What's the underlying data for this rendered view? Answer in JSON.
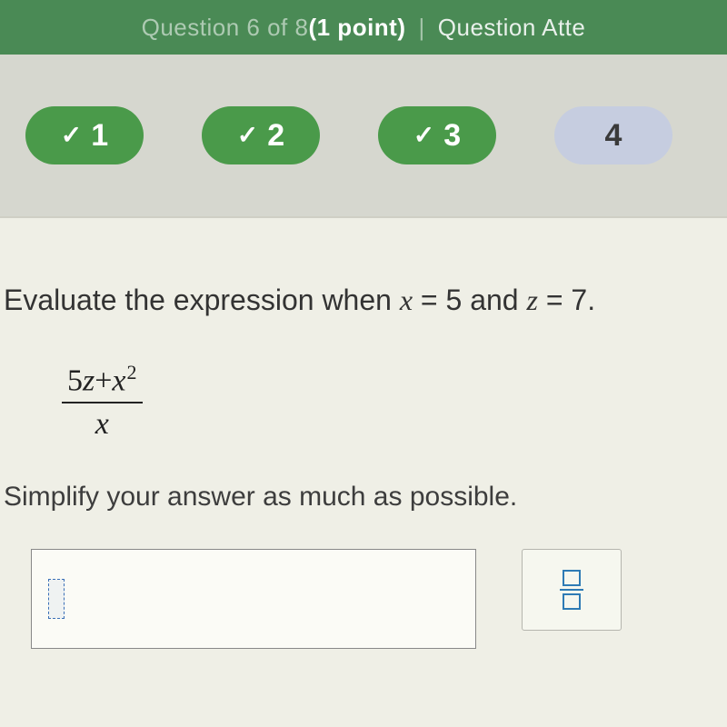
{
  "header": {
    "left_faded": "Question 6 of 8 ",
    "point_bold": "(1 point)",
    "divider": "|",
    "right": "Question Atte"
  },
  "nav": {
    "pills": [
      {
        "label": "1",
        "state": "completed",
        "check": true
      },
      {
        "label": "2",
        "state": "completed",
        "check": true
      },
      {
        "label": "3",
        "state": "completed",
        "check": true
      },
      {
        "label": "4",
        "state": "current",
        "check": false
      }
    ]
  },
  "question": {
    "prompt_prefix": "Evaluate the expression when ",
    "var1": "x",
    "eq1": " = 5 and ",
    "var2": "z",
    "eq2": " = 7.",
    "expression": {
      "numerator_plain_1": "5",
      "numerator_it_1": "z",
      "numerator_plain_2": "+",
      "numerator_it_2": "x",
      "numerator_sup": "2",
      "denominator": "x"
    },
    "instruction": "Simplify your answer as much as possible."
  },
  "colors": {
    "header_bg": "#4a8a55",
    "pill_completed": "#4a9a4a",
    "pill_current": "#c6cde0",
    "body_bg": "#e8e7dc",
    "tool_accent": "#2e7bb5"
  }
}
